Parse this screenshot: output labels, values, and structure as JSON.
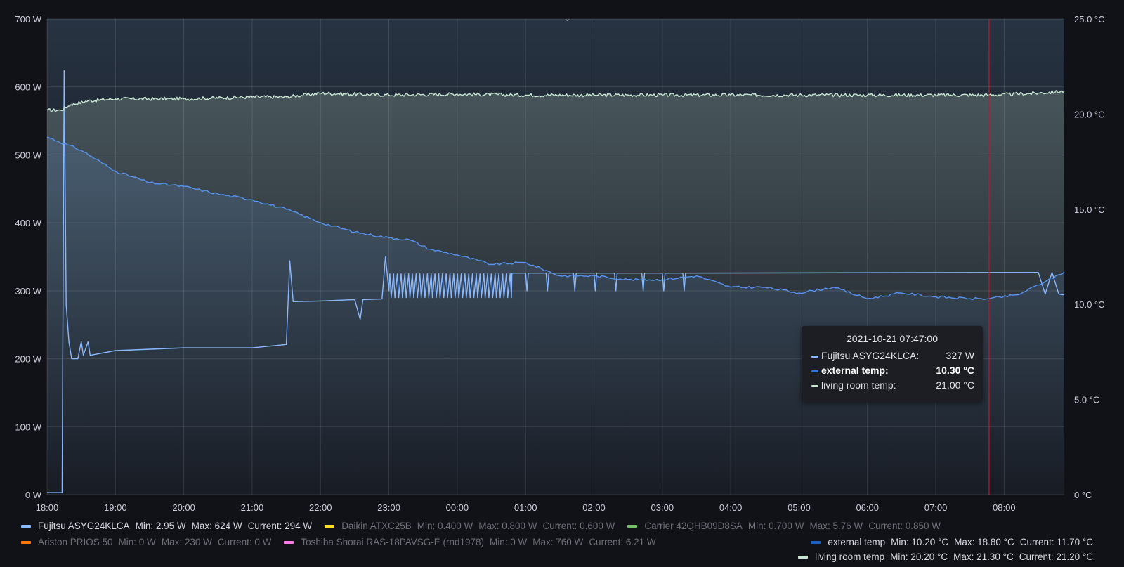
{
  "chart_data": {
    "type": "line",
    "title": "",
    "x_ticks": [
      "18:00",
      "19:00",
      "20:00",
      "21:00",
      "22:00",
      "23:00",
      "00:00",
      "01:00",
      "02:00",
      "03:00",
      "04:00",
      "05:00",
      "06:00",
      "07:00",
      "08:00"
    ],
    "x_range_hours": [
      18.0,
      32.88
    ],
    "y_left": {
      "ticks": [
        "0 W",
        "100 W",
        "200 W",
        "300 W",
        "400 W",
        "500 W",
        "600 W",
        "700 W"
      ],
      "range": [
        0,
        700
      ],
      "unit": "W"
    },
    "y_right": {
      "ticks": [
        "0 °C",
        "5.0 °C",
        "10.0 °C",
        "15.0 °C",
        "20.0 °C",
        "25.0 °C"
      ],
      "range": [
        0,
        25
      ],
      "unit": "°C"
    },
    "grid": true,
    "cursor_time_hours": 31.78,
    "series": [
      {
        "name": "Fujitsu ASYG24KLCA",
        "axis": "left",
        "color": "#8ab8ff",
        "points": [
          [
            18.0,
            2.95
          ],
          [
            18.22,
            3
          ],
          [
            18.25,
            624
          ],
          [
            18.28,
            280
          ],
          [
            18.32,
            225
          ],
          [
            18.36,
            200
          ],
          [
            18.45,
            200
          ],
          [
            18.5,
            225
          ],
          [
            18.53,
            205
          ],
          [
            18.6,
            225
          ],
          [
            18.63,
            205
          ],
          [
            19.0,
            212
          ],
          [
            20.0,
            216
          ],
          [
            21.0,
            216
          ],
          [
            21.5,
            221
          ],
          [
            21.55,
            344
          ],
          [
            21.6,
            284
          ],
          [
            22.0,
            285
          ],
          [
            22.5,
            287
          ],
          [
            22.58,
            258
          ],
          [
            22.62,
            287
          ],
          [
            22.9,
            288
          ],
          [
            22.95,
            350
          ],
          [
            23.0,
            300
          ]
        ],
        "oscillation": {
          "from": 23.0,
          "to": 24.8,
          "period": 0.055,
          "high": 325,
          "low": 290
        },
        "tail": [
          [
            24.8,
            326
          ],
          [
            27.0,
            326
          ],
          [
            32.5,
            327
          ],
          [
            32.6,
            295
          ],
          [
            32.7,
            327
          ],
          [
            32.8,
            295
          ],
          [
            32.88,
            294
          ]
        ],
        "tooltip_value": "327 W",
        "legend": {
          "min": "Min: 2.95 W",
          "max": "Max: 624 W",
          "current": "Current: 294 W"
        }
      },
      {
        "name": "Daikin ATXC25B",
        "axis": "left",
        "color": "#fade2a",
        "hidden": true,
        "legend": {
          "min": "Min: 0.400 W",
          "max": "Max: 0.800 W",
          "current": "Current: 0.600 W"
        }
      },
      {
        "name": "Carrier 42QHB09D8SA",
        "axis": "left",
        "color": "#73bf69",
        "hidden": true,
        "legend": {
          "min": "Min: 0.700 W",
          "max": "Max: 5.76 W",
          "current": "Current: 0.850 W"
        }
      },
      {
        "name": "Ariston PRIOS 50",
        "axis": "left",
        "color": "#ff780a",
        "hidden": true,
        "legend": {
          "min": "Min: 0 W",
          "max": "Max: 230 W",
          "current": "Current: 0 W"
        }
      },
      {
        "name": "Toshiba Shorai RAS-18PAVSG-E (rnd1978)",
        "axis": "left",
        "color": "#ff7ae6",
        "hidden": true,
        "legend": {
          "min": "Min: 0 W",
          "max": "Max: 760 W",
          "current": "Current: 6.21 W"
        }
      },
      {
        "name": "external temp",
        "axis": "right",
        "color": "#5794f2",
        "points": [
          [
            18.0,
            18.8
          ],
          [
            18.5,
            18.1
          ],
          [
            19.0,
            17.0
          ],
          [
            19.5,
            16.4
          ],
          [
            20.0,
            16.2
          ],
          [
            20.5,
            15.8
          ],
          [
            21.0,
            15.5
          ],
          [
            21.5,
            15.0
          ],
          [
            22.0,
            14.3
          ],
          [
            22.5,
            13.8
          ],
          [
            23.0,
            13.5
          ],
          [
            23.3,
            13.4
          ],
          [
            23.6,
            12.9
          ],
          [
            24.0,
            12.6
          ],
          [
            24.5,
            12.1
          ],
          [
            25.0,
            12.2
          ],
          [
            25.5,
            11.5
          ],
          [
            26.0,
            11.5
          ],
          [
            26.5,
            11.3
          ],
          [
            27.0,
            11.3
          ],
          [
            27.5,
            11.5
          ],
          [
            28.0,
            10.9
          ],
          [
            28.5,
            10.9
          ],
          [
            29.0,
            10.6
          ],
          [
            29.5,
            10.9
          ],
          [
            30.0,
            10.3
          ],
          [
            30.5,
            10.6
          ],
          [
            31.0,
            10.4
          ],
          [
            31.5,
            10.3
          ],
          [
            31.78,
            10.3
          ],
          [
            32.2,
            10.5
          ],
          [
            32.6,
            11.2
          ],
          [
            32.88,
            11.7
          ]
        ],
        "tooltip_value": "10.30 °C",
        "legend": {
          "min": "Min: 10.20 °C",
          "max": "Max: 18.80 °C",
          "current": "Current: 11.70 °C"
        }
      },
      {
        "name": "living room temp",
        "axis": "right",
        "color": "#c8e6d2",
        "points": [
          [
            18.0,
            20.2
          ],
          [
            18.2,
            20.2
          ],
          [
            18.35,
            20.5
          ],
          [
            18.6,
            20.7
          ],
          [
            19.0,
            20.8
          ],
          [
            20.0,
            20.8
          ],
          [
            21.0,
            20.9
          ],
          [
            21.5,
            20.9
          ],
          [
            22.0,
            21.1
          ],
          [
            23.0,
            21.0
          ],
          [
            24.0,
            21.05
          ],
          [
            25.0,
            21.0
          ],
          [
            26.0,
            21.0
          ],
          [
            27.0,
            21.0
          ],
          [
            28.0,
            21.0
          ],
          [
            29.0,
            21.0
          ],
          [
            30.0,
            21.0
          ],
          [
            31.0,
            21.0
          ],
          [
            31.78,
            21.0
          ],
          [
            32.5,
            21.1
          ],
          [
            32.88,
            21.2
          ]
        ],
        "tooltip_value": "21.00 °C",
        "legend": {
          "min": "Min: 20.20 °C",
          "max": "Max: 21.30 °C",
          "current": "Current: 21.20 °C"
        }
      }
    ]
  },
  "tooltip": {
    "time": "2021-10-21 07:47:00",
    "rows": [
      {
        "label": "Fujitsu ASYG24KLCA:",
        "value": "327 W",
        "color": "#8ab8ff"
      },
      {
        "label": "external temp:",
        "value": "10.30 °C",
        "color": "#3274d9"
      },
      {
        "label": "living room temp:",
        "value": "21.00 °C",
        "color": "#c8e6d2"
      }
    ]
  },
  "legend": {
    "row1": [
      {
        "name": "Fujitsu ASYG24KLCA",
        "min": "Min: 2.95 W",
        "max": "Max: 624 W",
        "current": "Current: 294 W",
        "color": "#8ab8ff",
        "active": true
      },
      {
        "name": "Daikin ATXC25B",
        "min": "Min: 0.400 W",
        "max": "Max: 0.800 W",
        "current": "Current: 0.600 W",
        "color": "#fade2a",
        "active": false
      },
      {
        "name": "Carrier 42QHB09D8SA",
        "min": "Min: 0.700 W",
        "max": "Max: 5.76 W",
        "current": "Current: 0.850 W",
        "color": "#73bf69",
        "active": false
      }
    ],
    "row2": [
      {
        "name": "Ariston PRIOS 50",
        "min": "Min: 0 W",
        "max": "Max: 230 W",
        "current": "Current: 0 W",
        "color": "#ff780a",
        "active": false
      },
      {
        "name": "Toshiba Shorai RAS-18PAVSG-E (rnd1978)",
        "min": "Min: 0 W",
        "max": "Max: 760 W",
        "current": "Current: 6.21 W",
        "color": "#ff7ae6",
        "active": false
      }
    ],
    "right": [
      {
        "name": "external temp",
        "min": "Min: 10.20 °C",
        "max": "Max: 18.80 °C",
        "current": "Current: 11.70 °C",
        "color": "#1f60c4",
        "active": true
      },
      {
        "name": "living room temp",
        "min": "Min: 20.20 °C",
        "max": "Max: 21.30 °C",
        "current": "Current: 21.20 °C",
        "color": "#c8e6d2",
        "active": true
      }
    ]
  },
  "icons": {
    "collapse": "chevron-down-icon"
  }
}
